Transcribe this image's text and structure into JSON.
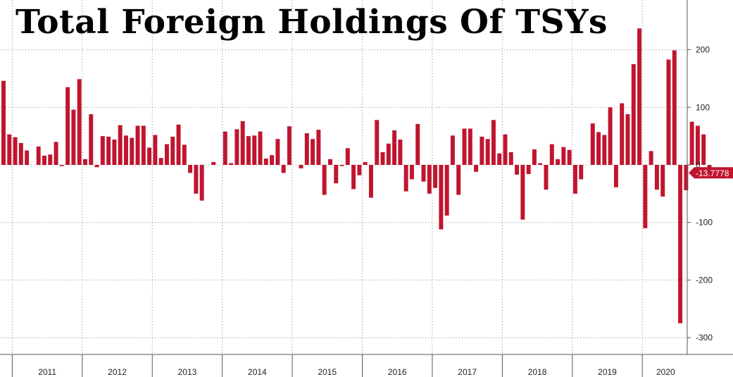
{
  "chart_data": {
    "type": "bar",
    "title": "Total Foreign Holdings Of TSYs",
    "xlabel": "",
    "ylabel": "",
    "ylim": [
      -330,
      285
    ],
    "y_ticks": [
      -300,
      -200,
      -100,
      0,
      100,
      200
    ],
    "x_tick_labels": [
      "2011",
      "2012",
      "2013",
      "2014",
      "2015",
      "2016",
      "2017",
      "2018",
      "2019",
      "2020"
    ],
    "grid": true,
    "last_value_label": "-13.7778",
    "colors": {
      "bar": "#c0152f",
      "last_value_badge": "#c0152f",
      "grid": "#888888",
      "axis": "#555555"
    },
    "start": "2010-11",
    "end": "2020-08",
    "values": [
      146,
      53,
      48,
      38,
      25,
      0,
      32,
      16,
      18,
      40,
      -2,
      135,
      96,
      149,
      10,
      88,
      -4,
      50,
      49,
      44,
      69,
      51,
      47,
      68,
      68,
      30,
      52,
      12,
      36,
      49,
      70,
      35,
      -14,
      -50,
      -62,
      0,
      5,
      0,
      58,
      3,
      62,
      76,
      50,
      51,
      58,
      11,
      17,
      45,
      -14,
      67,
      0,
      -6,
      55,
      45,
      61,
      -52,
      10,
      -32,
      -2,
      29,
      -42,
      -18,
      5,
      -57,
      78,
      22,
      37,
      60,
      44,
      -46,
      -25,
      71,
      -29,
      -50,
      -40,
      -112,
      -88,
      51,
      -52,
      63,
      63,
      -12,
      49,
      45,
      78,
      20,
      53,
      22,
      -17,
      -95,
      -16,
      27,
      3,
      -43,
      36,
      10,
      31,
      26,
      -50,
      -25,
      0,
      72,
      57,
      52,
      100,
      -39,
      107,
      88,
      175,
      237,
      -110,
      24,
      -43,
      -55,
      183,
      199,
      -275,
      -44,
      75,
      68,
      53,
      -13.7778
    ]
  }
}
